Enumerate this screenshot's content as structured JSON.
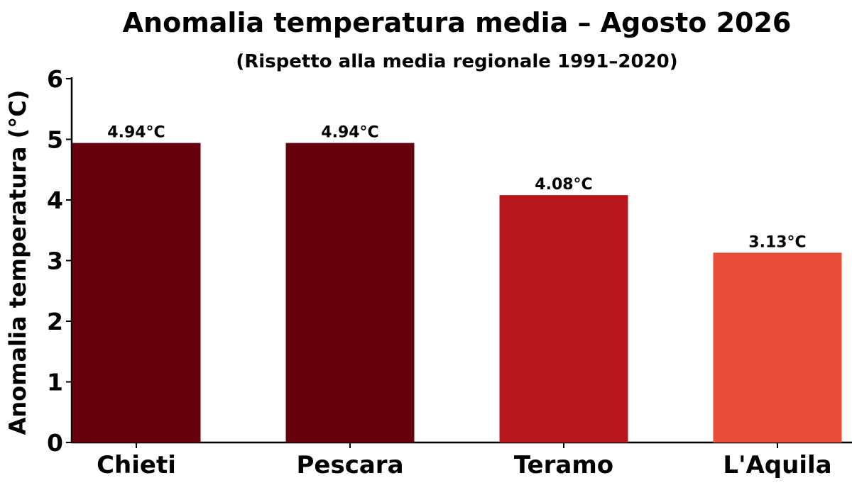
{
  "chart_data": {
    "type": "bar",
    "title": "Anomalia temperatura media – Agosto 2026",
    "subtitle": "(Rispetto alla media regionale 1991–2020)",
    "ylabel": "Anomalia temperatura (°C)",
    "xlabel": "",
    "ylim": [
      0,
      6
    ],
    "yticks": [
      "0",
      "1",
      "2",
      "3",
      "4",
      "5",
      "6"
    ],
    "categories": [
      "Chieti",
      "Pescara",
      "Teramo",
      "L'Aquila"
    ],
    "values": [
      4.94,
      4.94,
      4.08,
      3.13
    ],
    "data_labels": [
      "4.94°C",
      "4.94°C",
      "4.08°C",
      "3.13°C"
    ],
    "colors": [
      "#67000d",
      "#67000d",
      "#b5171c",
      "#e84d3b"
    ],
    "grid": false,
    "legend": "none"
  }
}
